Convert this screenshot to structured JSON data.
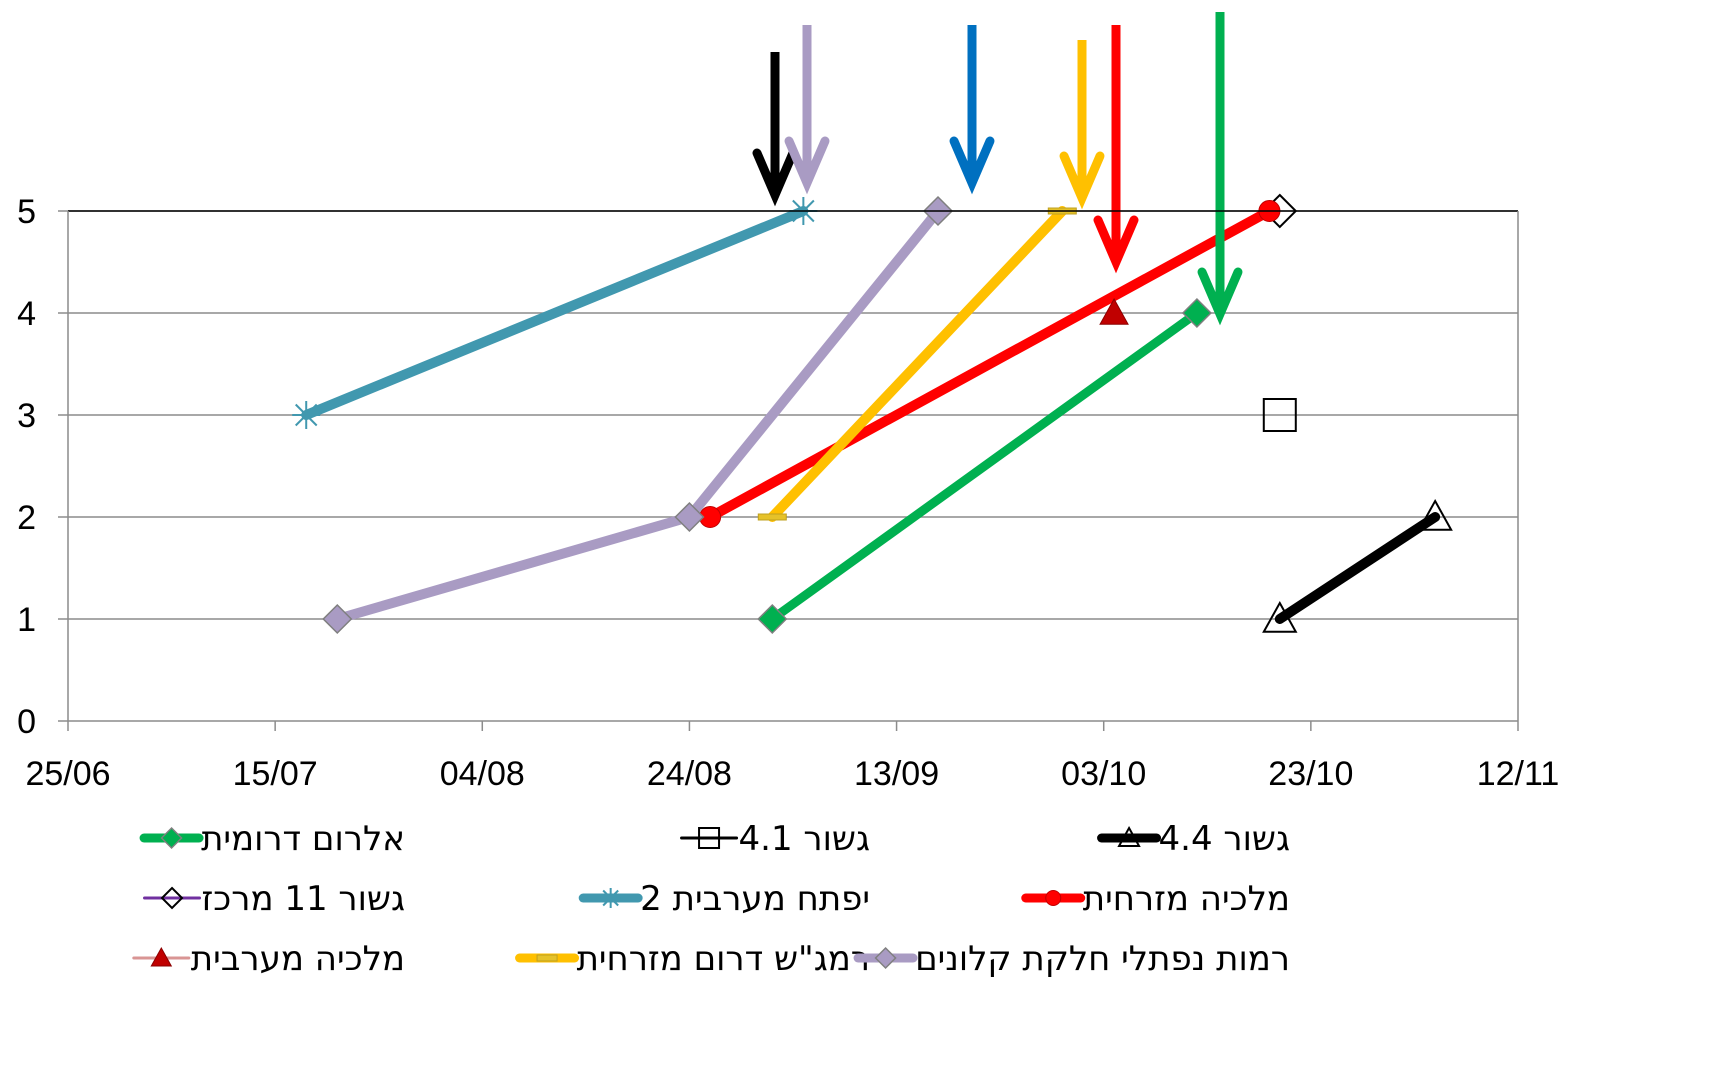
{
  "chart_data": {
    "type": "line",
    "title": "",
    "xlabel": "",
    "ylabel": "",
    "x_type": "date",
    "year": 2014,
    "xlim": [
      "25/06",
      "12/11"
    ],
    "xticks": [
      "25/06",
      "15/07",
      "04/08",
      "24/08",
      "13/09",
      "03/10",
      "23/10",
      "12/11"
    ],
    "ylim": [
      0,
      5
    ],
    "yticks": [
      "0",
      "1",
      "2",
      "3",
      "4",
      "5"
    ],
    "grid": "horizontal",
    "legend_position": "bottom",
    "series": [
      {
        "name": "אלרום דרומית",
        "color": "#00B050",
        "width": 9,
        "marker": "diamond",
        "marker_fill": "#00B050",
        "points": [
          [
            "01/09",
            1
          ],
          [
            "12/10",
            4
          ]
        ]
      },
      {
        "name": "גשור 4.1",
        "color": "#000000",
        "width": 3,
        "marker": "square-open",
        "marker_fill": "none",
        "points": [
          [
            "20/10",
            3
          ]
        ]
      },
      {
        "name": "גשור 4.4",
        "color": "#000000",
        "width": 10,
        "marker": "triangle-open",
        "marker_fill": "none",
        "points": [
          [
            "20/10",
            1
          ],
          [
            "04/11",
            2
          ]
        ]
      },
      {
        "name": "גשור 11 מרכז",
        "color": "#7030A0",
        "width": 3,
        "marker": "diamond-open",
        "marker_fill": "none",
        "points": [
          [
            "20/10",
            5
          ]
        ]
      },
      {
        "name": "יפתח מערבית 2",
        "color": "#4198AF",
        "width": 10,
        "marker": "asterisk",
        "marker_fill": "none",
        "points": [
          [
            "18/07",
            3
          ],
          [
            "04/09",
            5
          ]
        ]
      },
      {
        "name": "מלכיה מזרחית",
        "color": "#FF0000",
        "width": 10,
        "marker": "circle",
        "marker_fill": "#FF0000",
        "points": [
          [
            "26/08",
            2
          ],
          [
            "19/10",
            5
          ]
        ]
      },
      {
        "name": "מלכיה מערבית",
        "color": "#D99594",
        "width": 3,
        "marker": "triangle",
        "marker_fill": "#C00000",
        "points": [
          [
            "04/10",
            4
          ]
        ]
      },
      {
        "name": "רמג\"ש דרום מזרחית",
        "color": "#FFC000",
        "width": 10,
        "marker": "dash",
        "marker_fill": "#E6C229",
        "points": [
          [
            "01/09",
            2
          ],
          [
            "29/09",
            5
          ]
        ]
      },
      {
        "name": "רמות נפתלי חלקת קלונים",
        "color": "#A99BC3",
        "width": 10,
        "marker": "diamond",
        "marker_fill": "#A99BC3",
        "points": [
          [
            "21/07",
            1
          ],
          [
            "24/08",
            2
          ],
          [
            "17/09",
            5
          ]
        ]
      }
    ],
    "annotations": [
      {
        "type": "arrow",
        "color": "#000000",
        "x": "31/08"
      },
      {
        "type": "arrow",
        "color": "#A99BC3",
        "x": "04/09"
      },
      {
        "type": "arrow",
        "color": "#0070C0",
        "x": "21/09"
      },
      {
        "type": "arrow",
        "color": "#FFC000",
        "x": "29/09"
      },
      {
        "type": "arrow",
        "color": "#FF0000",
        "x": "04/10"
      },
      {
        "type": "arrow",
        "color": "#00B050",
        "x": "15/10"
      }
    ]
  }
}
